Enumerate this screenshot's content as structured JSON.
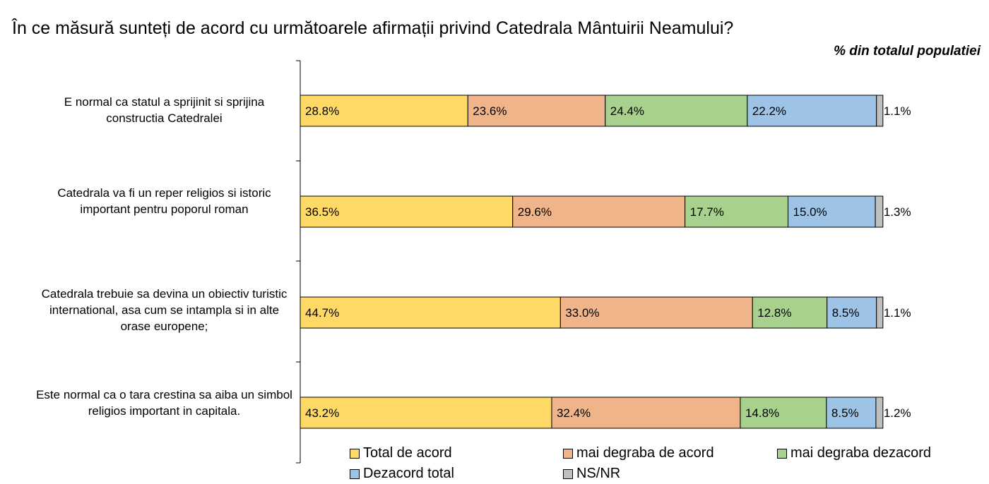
{
  "header": {
    "title": "În ce măsură sunteți de acord cu următoarele afirmații privind Catedrala Mântuirii Neamului?",
    "subtitle": "% din totalul populatiei"
  },
  "chart_data": {
    "type": "bar",
    "orientation": "horizontal",
    "stacked": true,
    "categories": [
      "E normal ca statul  a sprijinit si sprijina constructia Catedralei",
      "Catedrala va fi un reper religios si istoric important pentru poporul roman",
      "Catedrala trebuie sa devina un obiectiv turistic international, asa cum se intampla si in alte orase europene;",
      "Este normal ca o tara crestina sa aiba un simbol religios important in capitala."
    ],
    "series": [
      {
        "name": "Total de acord",
        "color": "#FFD966",
        "values": [
          28.8,
          36.5,
          44.7,
          43.2
        ],
        "labels": [
          "28.8%",
          "36.5%",
          "44.7%",
          "43.2%"
        ]
      },
      {
        "name": "mai degraba de acord",
        "color": "#F0B48A",
        "values": [
          23.6,
          29.6,
          33.0,
          32.4
        ],
        "labels": [
          "23.6%",
          "29.6%",
          "33.0%",
          "32.4%"
        ]
      },
      {
        "name": "mai degraba dezacord",
        "color": "#A9D18E",
        "values": [
          24.4,
          17.7,
          12.8,
          14.8
        ],
        "labels": [
          "24.4%",
          "17.7%",
          "12.8%",
          "14.8%"
        ]
      },
      {
        "name": "Dezacord total",
        "color": "#9DC3E6",
        "values": [
          22.2,
          15.0,
          8.5,
          8.5
        ],
        "labels": [
          "22.2%",
          "15.0%",
          "8.5%",
          "8.5%"
        ]
      },
      {
        "name": "NS/NR",
        "color": "#BFBFBF",
        "values": [
          1.1,
          1.3,
          1.1,
          1.2
        ],
        "labels": [
          "1.1%",
          "1.3%",
          "1.1%",
          "1.2%"
        ]
      }
    ],
    "xlim": [
      0,
      100
    ],
    "grid": false,
    "legend_position": "bottom"
  }
}
